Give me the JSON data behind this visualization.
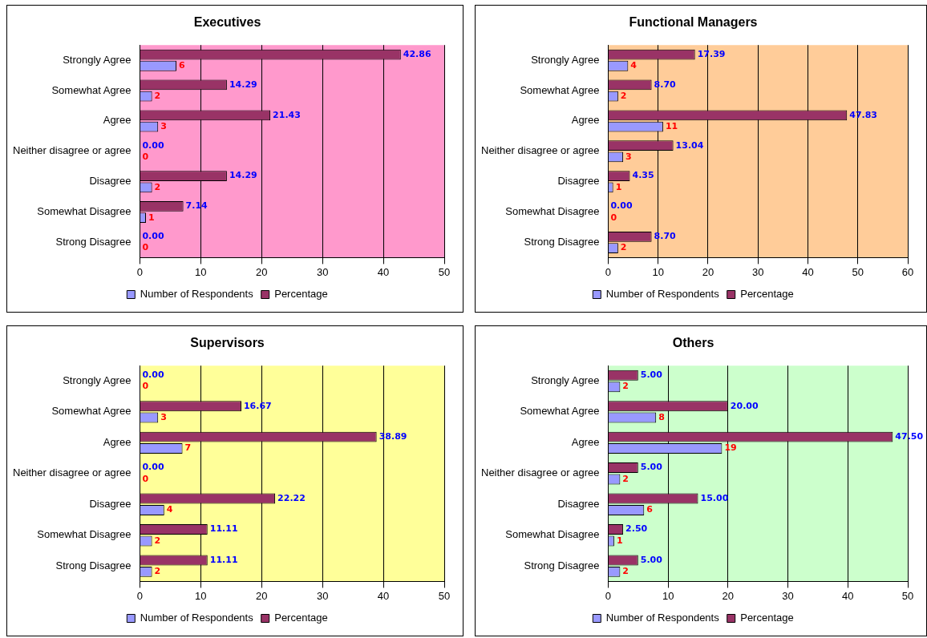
{
  "chart_data": [
    {
      "type": "bar",
      "orientation": "horizontal",
      "title": "Executives",
      "categories": [
        "Strongly Agree",
        "Somewhat Agree",
        "Agree",
        "Neither disagree or agree",
        "Disagree",
        "Somewhat Disagree",
        "Strong Disagree"
      ],
      "series": [
        {
          "name": "Number of Respondents",
          "color": "#9999ff",
          "values": [
            6,
            2,
            3,
            0,
            2,
            1,
            0
          ]
        },
        {
          "name": "Percentage",
          "color": "#993366",
          "values": [
            42.86,
            14.29,
            21.43,
            0.0,
            14.29,
            7.14,
            0.0
          ],
          "value_labels": [
            "42.86",
            "14.29",
            "21.43",
            "0.00",
            "14.29",
            "7.14",
            "0.00"
          ]
        }
      ],
      "xlim": [
        0,
        50
      ],
      "xticks": [
        0,
        10,
        20,
        30,
        40,
        50
      ],
      "grid": "x",
      "legend": "bottom",
      "data_labels": true
    },
    {
      "type": "bar",
      "orientation": "horizontal",
      "title": "Functional Managers",
      "categories": [
        "Strongly Agree",
        "Somewhat Agree",
        "Agree",
        "Neither disagree or agree",
        "Disagree",
        "Somewhat Disagree",
        "Strong Disagree"
      ],
      "series": [
        {
          "name": "Number of Respondents",
          "color": "#9999ff",
          "values": [
            4,
            2,
            11,
            3,
            1,
            0,
            2
          ]
        },
        {
          "name": "Percentage",
          "color": "#993366",
          "values": [
            17.39,
            8.7,
            47.83,
            13.04,
            4.35,
            0.0,
            8.7
          ],
          "value_labels": [
            "17.39",
            "8.70",
            "47.83",
            "13.04",
            "4.35",
            "0.00",
            "8.70"
          ]
        }
      ],
      "xlim": [
        0,
        60
      ],
      "xticks": [
        0,
        10,
        20,
        30,
        40,
        50,
        60
      ],
      "grid": "x",
      "legend": "bottom",
      "data_labels": true
    },
    {
      "type": "bar",
      "orientation": "horizontal",
      "title": "Supervisors",
      "categories": [
        "Strongly Agree",
        "Somewhat Agree",
        "Agree",
        "Neither disagree or agree",
        "Disagree",
        "Somewhat Disagree",
        "Strong Disagree"
      ],
      "series": [
        {
          "name": "Number of Respondents",
          "color": "#9999ff",
          "values": [
            0,
            3,
            7,
            0,
            4,
            2,
            2
          ]
        },
        {
          "name": "Percentage",
          "color": "#993366",
          "values": [
            0.0,
            16.67,
            38.89,
            0.0,
            22.22,
            11.11,
            11.11
          ],
          "value_labels": [
            "0.00",
            "16.67",
            "38.89",
            "0.00",
            "22.22",
            "11.11",
            "11.11"
          ]
        }
      ],
      "xlim": [
        0,
        50
      ],
      "xticks": [
        0,
        10,
        20,
        30,
        40,
        50
      ],
      "grid": "x",
      "legend": "bottom",
      "data_labels": true
    },
    {
      "type": "bar",
      "orientation": "horizontal",
      "title": "Others",
      "categories": [
        "Strongly Agree",
        "Somewhat Agree",
        "Agree",
        "Neither disagree or agree",
        "Disagree",
        "Somewhat Disagree",
        "Strong Disagree"
      ],
      "series": [
        {
          "name": "Number of Respondents",
          "color": "#9999ff",
          "values": [
            2,
            8,
            19,
            2,
            6,
            1,
            2
          ]
        },
        {
          "name": "Percentage",
          "color": "#993366",
          "values": [
            5.0,
            20.0,
            47.5,
            5.0,
            15.0,
            2.5,
            5.0
          ],
          "value_labels": [
            "5.00",
            "20.00",
            "47.50",
            "5.00",
            "15.00",
            "2.50",
            "5.00"
          ]
        }
      ],
      "xlim": [
        0,
        50
      ],
      "xticks": [
        0,
        10,
        20,
        30,
        40,
        50
      ],
      "grid": "x",
      "legend": "bottom",
      "data_labels": true
    }
  ]
}
